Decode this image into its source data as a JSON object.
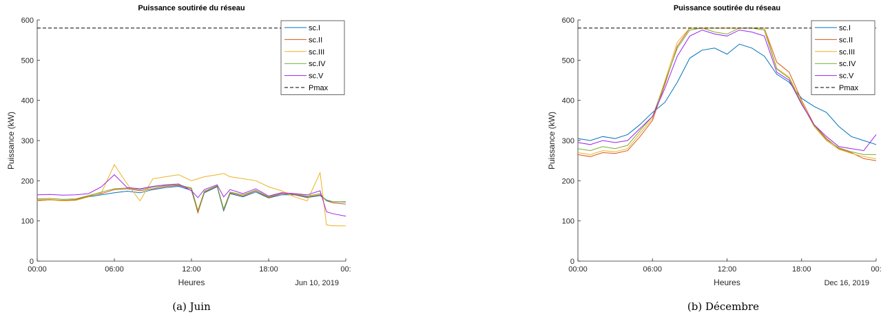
{
  "colors": {
    "sc.I": "#0072bd",
    "sc.II": "#d95319",
    "sc.III": "#edb120",
    "sc.IV": "#77ac30",
    "sc.V": "#a020f0",
    "Pmax": "#000000"
  },
  "chart_data": [
    {
      "type": "line",
      "title": "Puissance soutirée du réseau",
      "xlabel": "Heures",
      "ylabel": "Puissance (kW)",
      "date_label": "Jun 10, 2019",
      "caption": "(a) Juin",
      "xlim": [
        0,
        24
      ],
      "ylim": [
        0,
        600
      ],
      "x_ticks": [
        0,
        6,
        12,
        18,
        24
      ],
      "x_tick_labels": [
        "00:00",
        "06:00",
        "12:00",
        "18:00",
        "00:"
      ],
      "y_ticks": [
        0,
        100,
        200,
        300,
        400,
        500,
        600
      ],
      "y_tick_labels": [
        "0",
        "100",
        "200",
        "300",
        "400",
        "500",
        "600"
      ],
      "legend_position": "top-right",
      "x": [
        0,
        1,
        2,
        3,
        4,
        5,
        6,
        7,
        8,
        9,
        10,
        11,
        12,
        12.5,
        13,
        14,
        14.5,
        15,
        16,
        17,
        18,
        19,
        20,
        21,
        22,
        22.5,
        23,
        24
      ],
      "series": [
        {
          "name": "sc.I",
          "values": [
            150,
            152,
            151,
            152,
            160,
            165,
            170,
            174,
            170,
            178,
            183,
            186,
            176,
            122,
            170,
            185,
            125,
            168,
            160,
            172,
            157,
            165,
            165,
            158,
            163,
            152,
            148,
            147
          ]
        },
        {
          "name": "sc.II",
          "values": [
            152,
            153,
            151,
            153,
            162,
            168,
            178,
            180,
            175,
            180,
            186,
            188,
            180,
            120,
            172,
            187,
            128,
            170,
            162,
            175,
            158,
            168,
            166,
            160,
            165,
            150,
            145,
            142
          ]
        },
        {
          "name": "sc.III",
          "values": [
            150,
            152,
            150,
            151,
            160,
            170,
            240,
            192,
            150,
            205,
            210,
            215,
            200,
            205,
            210,
            215,
            218,
            210,
            205,
            200,
            185,
            175,
            160,
            150,
            220,
            90,
            88,
            88
          ]
        },
        {
          "name": "sc.IV",
          "values": [
            155,
            156,
            154,
            155,
            163,
            172,
            180,
            182,
            178,
            184,
            188,
            190,
            182,
            126,
            174,
            188,
            130,
            172,
            165,
            176,
            160,
            170,
            168,
            162,
            168,
            150,
            148,
            148
          ]
        },
        {
          "name": "sc.V",
          "values": [
            165,
            166,
            164,
            165,
            168,
            185,
            215,
            183,
            180,
            186,
            190,
            192,
            175,
            158,
            178,
            190,
            160,
            178,
            168,
            180,
            162,
            170,
            168,
            165,
            175,
            123,
            118,
            112
          ]
        },
        {
          "name": "Pmax",
          "values": [
            580,
            580,
            580,
            580,
            580,
            580,
            580,
            580,
            580,
            580,
            580,
            580,
            580,
            580,
            580,
            580,
            580,
            580,
            580,
            580,
            580,
            580,
            580,
            580,
            580,
            580,
            580,
            580
          ]
        }
      ]
    },
    {
      "type": "line",
      "title": "Puissance soutirée du réseau",
      "xlabel": "Heures",
      "ylabel": "Puissance (kW)",
      "date_label": "Dec 16, 2019",
      "caption": "(b) Décembre",
      "xlim": [
        0,
        24
      ],
      "ylim": [
        0,
        600
      ],
      "x_ticks": [
        0,
        6,
        12,
        18,
        24
      ],
      "x_tick_labels": [
        "00:00",
        "06:00",
        "12:00",
        "18:00",
        "00:"
      ],
      "y_ticks": [
        0,
        100,
        200,
        300,
        400,
        500,
        600
      ],
      "y_tick_labels": [
        "0",
        "100",
        "200",
        "300",
        "400",
        "500",
        "600"
      ],
      "legend_position": "top-right",
      "x": [
        0,
        1,
        2,
        3,
        4,
        5,
        6,
        7,
        8,
        9,
        10,
        11,
        12,
        13,
        14,
        15,
        16,
        17,
        18,
        19,
        20,
        21,
        22,
        23,
        24
      ],
      "series": [
        {
          "name": "sc.I",
          "values": [
            305,
            300,
            310,
            305,
            315,
            340,
            370,
            395,
            445,
            505,
            525,
            530,
            515,
            540,
            530,
            510,
            465,
            445,
            405,
            385,
            370,
            335,
            310,
            300,
            290
          ]
        },
        {
          "name": "sc.II",
          "values": [
            265,
            260,
            270,
            268,
            275,
            310,
            350,
            440,
            535,
            580,
            580,
            580,
            580,
            580,
            580,
            580,
            495,
            470,
            400,
            340,
            305,
            280,
            270,
            255,
            250
          ]
        },
        {
          "name": "sc.III",
          "values": [
            270,
            265,
            275,
            272,
            280,
            318,
            355,
            448,
            545,
            580,
            580,
            580,
            580,
            580,
            580,
            580,
            480,
            458,
            395,
            335,
            300,
            278,
            268,
            260,
            255
          ]
        },
        {
          "name": "sc.IV",
          "values": [
            280,
            275,
            285,
            280,
            288,
            325,
            360,
            445,
            530,
            575,
            580,
            570,
            565,
            580,
            580,
            575,
            478,
            455,
            392,
            338,
            302,
            282,
            272,
            265,
            265
          ]
        },
        {
          "name": "sc.V",
          "values": [
            295,
            290,
            300,
            295,
            300,
            330,
            360,
            430,
            510,
            560,
            575,
            565,
            560,
            575,
            570,
            560,
            470,
            450,
            390,
            340,
            310,
            285,
            280,
            275,
            315
          ]
        },
        {
          "name": "Pmax",
          "values": [
            580,
            580,
            580,
            580,
            580,
            580,
            580,
            580,
            580,
            580,
            580,
            580,
            580,
            580,
            580,
            580,
            580,
            580,
            580,
            580,
            580,
            580,
            580,
            580,
            580
          ]
        }
      ]
    }
  ]
}
